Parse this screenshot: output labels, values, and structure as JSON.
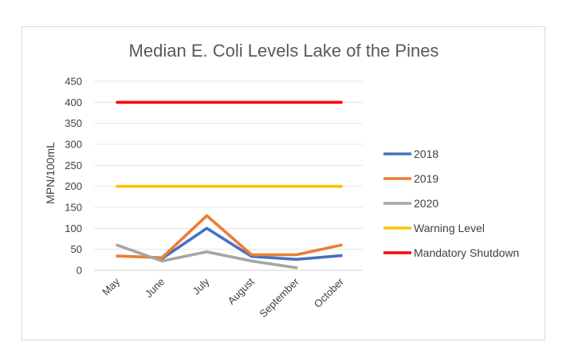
{
  "chart_data": {
    "type": "line",
    "title": "Median E. Coli Levels Lake of the Pines",
    "xlabel": "",
    "ylabel": "MPN/100mL",
    "ylim": [
      0,
      450
    ],
    "yticks": [
      0,
      50,
      100,
      150,
      200,
      250,
      300,
      350,
      400,
      450
    ],
    "grid": true,
    "legend_position": "right",
    "categories": [
      "May",
      "June",
      "July",
      "August",
      "September",
      "October"
    ],
    "series": [
      {
        "name": "2018",
        "color": "#4472C4",
        "values": [
          null,
          28,
          100,
          33,
          26,
          35
        ]
      },
      {
        "name": "2019",
        "color": "#ED7D31",
        "values": [
          34,
          30,
          130,
          37,
          37,
          60
        ]
      },
      {
        "name": "2020",
        "color": "#A5A5A5",
        "values": [
          60,
          22,
          44,
          22,
          6,
          null
        ]
      },
      {
        "name": "Warning Level",
        "color": "#FFC000",
        "values": [
          200,
          200,
          200,
          200,
          200,
          200
        ]
      },
      {
        "name": "Mandatory Shutdown",
        "color": "#FF0000",
        "values": [
          400,
          400,
          400,
          400,
          400,
          400
        ]
      }
    ]
  }
}
